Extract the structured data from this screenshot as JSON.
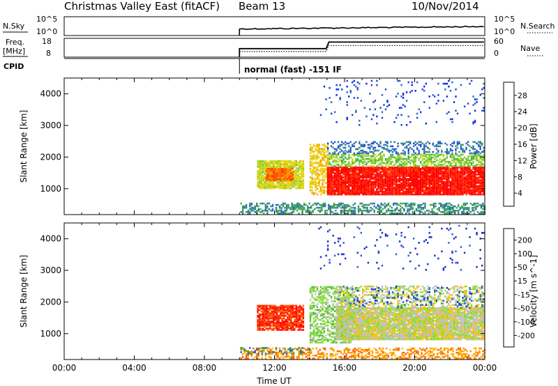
{
  "header": {
    "title": "Christmas Valley East (fitACF)",
    "beam": "Beam 13",
    "date": "10/Nov/2014"
  },
  "top_panels": {
    "sky_label": "N.Sky",
    "search_label": "N.Search",
    "freq_label_line1": "Freq.",
    "freq_label_line2": "[MHz]",
    "nave_label": "Nave",
    "cpid_label": "CPID",
    "cpid_text": "normal (fast) -151 IF",
    "noise_ticks": [
      "10^5",
      "10^0"
    ],
    "freq_ticks": [
      "18",
      "8"
    ],
    "nave_ticks": [
      "60",
      "0"
    ]
  },
  "chart_data": [
    {
      "type": "heatmap",
      "name": "power",
      "xlabel": "",
      "ylabel": "Slant Range [km]",
      "x_range_hours": [
        0,
        24
      ],
      "y_range_km": [
        180,
        4500
      ],
      "yticks": [
        "4000",
        "3000",
        "2000",
        "1000"
      ],
      "colorbar_label": "Power [dB]",
      "colorbar_ticks": [
        "28",
        "24",
        "20",
        "16",
        "12",
        "8",
        "4"
      ],
      "colorbar_colors": [
        "#0a1fff",
        "#1d46d4",
        "#2a6bbf",
        "#3f8f6b",
        "#3fb050",
        "#7ccc33",
        "#c8d822",
        "#ffd000",
        "#ff9a00",
        "#ff6a00",
        "#ff3300",
        "#ff0000"
      ],
      "regions": [
        {
          "t0": 10.05,
          "t1": 24,
          "r0": 200,
          "r1": 550,
          "level": 3,
          "density": 0.5
        },
        {
          "t0": 11.0,
          "t1": 13.6,
          "r0": 1000,
          "r1": 1900,
          "level": 6,
          "density": 0.9
        },
        {
          "t0": 11.5,
          "t1": 13.0,
          "r0": 1250,
          "r1": 1650,
          "level": 9,
          "density": 0.95
        },
        {
          "t0": 14.0,
          "t1": 15.0,
          "r0": 800,
          "r1": 2400,
          "level": 7,
          "density": 0.6
        },
        {
          "t0": 15.0,
          "t1": 24,
          "r0": 800,
          "r1": 1700,
          "level": 11,
          "density": 0.95
        },
        {
          "t0": 15.0,
          "t1": 24,
          "r0": 1700,
          "r1": 2100,
          "level": 5,
          "density": 0.6
        },
        {
          "t0": 15.0,
          "t1": 24,
          "r0": 2100,
          "r1": 2500,
          "level": 2,
          "density": 0.35
        },
        {
          "t0": 14.5,
          "t1": 24,
          "r0": 3000,
          "r1": 4400,
          "level": 1,
          "density": 0.05
        }
      ]
    },
    {
      "type": "heatmap",
      "name": "velocity",
      "xlabel": "Time UT",
      "ylabel": "Slant Range [km]",
      "x_range_hours": [
        0,
        24
      ],
      "y_range_km": [
        180,
        4500
      ],
      "xticks": [
        "00:00",
        "04:00",
        "08:00",
        "12:00",
        "16:00",
        "20:00",
        "00:00"
      ],
      "yticks": [
        "4000",
        "3000",
        "2000",
        "1000"
      ],
      "colorbar_label": "Velocity [m s^-1]",
      "colorbar_ticks": [
        "200",
        "100",
        "50",
        "15",
        "-15",
        "-50",
        "-100",
        "-200"
      ],
      "colorbar_colors": [
        "#1530c8",
        "#2a60d8",
        "#3c8a3c",
        "#55bb33",
        "#7fe030",
        "#c0c0b8",
        "#ffc000",
        "#ff9000",
        "#ff6000",
        "#ff2000",
        "#ff0000"
      ],
      "regions": [
        {
          "t0": 10.05,
          "t1": 24,
          "r0": 200,
          "r1": 550,
          "level": 7,
          "density": 0.45
        },
        {
          "t0": 10.05,
          "t1": 14,
          "r0": 350,
          "r1": 550,
          "level": 2,
          "density": 0.3
        },
        {
          "t0": 11.0,
          "t1": 13.6,
          "r0": 1100,
          "r1": 1900,
          "level": 9,
          "density": 0.9
        },
        {
          "t0": 14.0,
          "t1": 16.5,
          "r0": 700,
          "r1": 2500,
          "level": 4,
          "density": 0.5
        },
        {
          "t0": 15.5,
          "t1": 24,
          "r0": 800,
          "r1": 1800,
          "level": 5,
          "density": 0.95
        },
        {
          "t0": 15.5,
          "t1": 24,
          "r0": 1800,
          "r1": 2500,
          "level": 5,
          "density": 0.4
        },
        {
          "t0": 15.5,
          "t1": 24,
          "r0": 1800,
          "r1": 2500,
          "level": 1,
          "density": 0.1
        },
        {
          "t0": 14.5,
          "t1": 24,
          "r0": 3000,
          "r1": 4400,
          "level": 0,
          "density": 0.04
        }
      ]
    }
  ],
  "noise_series": {
    "sky_level": 0.35,
    "freq_step_hour": 15,
    "freq_before": 0.45,
    "freq_after": 0.8,
    "data_start_hour": 10
  }
}
